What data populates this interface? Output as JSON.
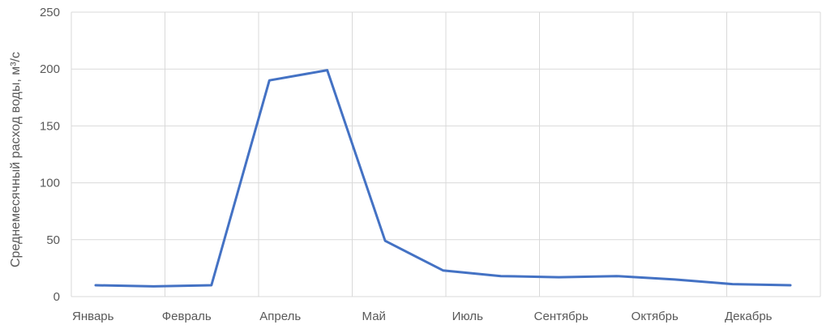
{
  "chart_data": {
    "type": "line",
    "title": "",
    "xlabel": "",
    "ylabel": "Среднемесячный расход воды, м³/с",
    "ylim": [
      0,
      250
    ],
    "yticks": [
      0,
      50,
      100,
      150,
      200,
      250
    ],
    "grid": true,
    "legend": "none",
    "x_tick_labels": [
      "Январь",
      "Февраль",
      "Апрель",
      "Май",
      "Июль",
      "Сентябрь",
      "Октябрь",
      "Декабрь"
    ],
    "series": [
      {
        "color": "#4472c4",
        "values": [
          10,
          9,
          10,
          190,
          199,
          49,
          23,
          18,
          17,
          18,
          15,
          11,
          10
        ]
      }
    ],
    "colors": {
      "line": "#4472c4",
      "grid": "#d9d9d9",
      "text": "#595959"
    }
  }
}
